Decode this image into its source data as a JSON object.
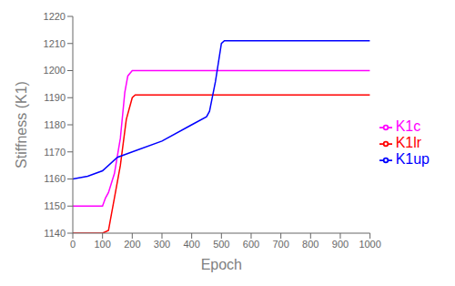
{
  "chart_data": {
    "type": "line",
    "xlabel": "Epoch",
    "ylabel": "Stiffness (K1)",
    "xlim": [
      0,
      1000
    ],
    "ylim": [
      1140,
      1220
    ],
    "xticks": [
      0,
      100,
      200,
      300,
      400,
      500,
      600,
      700,
      800,
      900,
      1000
    ],
    "yticks": [
      1140,
      1150,
      1160,
      1170,
      1180,
      1190,
      1200,
      1210,
      1220
    ],
    "grid": false,
    "legend": "right",
    "series": [
      {
        "name": "K1lr",
        "color": "#ff0000",
        "x": [
          0,
          100,
          120,
          125,
          130,
          140,
          160,
          180,
          200,
          210,
          1000
        ],
        "values": [
          1140,
          1140,
          1141,
          1144,
          1147,
          1153,
          1165,
          1182,
          1190,
          1191,
          1191
        ]
      },
      {
        "name": "K1c",
        "color": "#ff00ff",
        "x": [
          0,
          100,
          110,
          120,
          140,
          160,
          175,
          185,
          200,
          1000
        ],
        "values": [
          1150,
          1150,
          1153,
          1155,
          1162,
          1175,
          1192,
          1198,
          1200,
          1200
        ]
      },
      {
        "name": "K1up",
        "color": "#0000ff",
        "x": [
          0,
          50,
          100,
          150,
          175,
          200,
          300,
          400,
          450,
          460,
          480,
          500,
          510,
          1000
        ],
        "values": [
          1160,
          1161,
          1163,
          1168,
          1169,
          1170,
          1174,
          1180,
          1183,
          1185,
          1196,
          1210,
          1211,
          1211
        ]
      }
    ]
  }
}
